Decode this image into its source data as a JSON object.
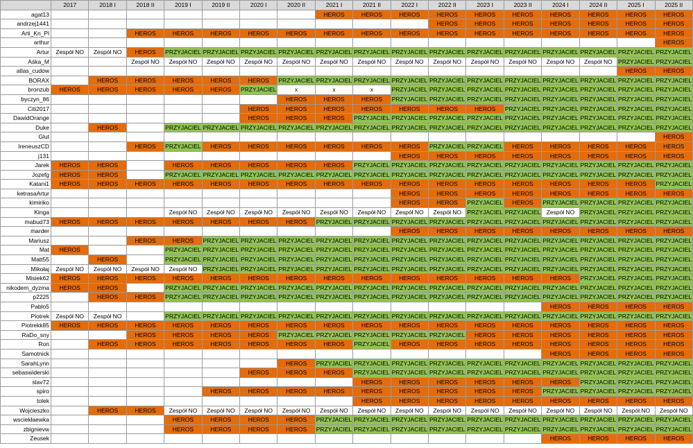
{
  "colors": {
    "HEROS": "#e46c0a",
    "PRZYJACIEL": "#92c353",
    "Zespół NO": "#ffffff",
    "x": "#ffffff",
    "header": "#d9d9d9"
  },
  "columns": [
    "2017",
    "2018 I",
    "2018 II",
    "2019 I",
    "2019 II",
    "2020 I",
    "2020 II",
    "2021 I",
    "2021 II",
    "2022 I",
    "2022 II",
    "2023 I",
    "2023 II",
    "2024 I",
    "2024 II",
    "2025 I",
    "2025 II"
  ],
  "rows": [
    {
      "name": "agat13",
      "cells": [
        "",
        "",
        "",
        "",
        "",
        "",
        "",
        "HEROS",
        "HEROS",
        "HEROS",
        "HEROS",
        "HEROS",
        "HEROS",
        "HEROS",
        "HEROS",
        "HEROS",
        "HEROS"
      ]
    },
    {
      "name": "andrzej1441",
      "cells": [
        "",
        "",
        "",
        "",
        "",
        "",
        "",
        "",
        "",
        "",
        "HEROS",
        "HEROS",
        "HEROS",
        "HEROS",
        "HEROS",
        "HEROS",
        "HEROS"
      ]
    },
    {
      "name": "Arti_Kn_Pl",
      "cells": [
        "",
        "",
        "HEROS",
        "HEROS",
        "HEROS",
        "HEROS",
        "HEROS",
        "HEROS",
        "HEROS",
        "HEROS",
        "HEROS",
        "HEROS",
        "HEROS",
        "HEROS",
        "HEROS",
        "HEROS",
        "HEROS"
      ]
    },
    {
      "name": "arthur",
      "cells": [
        "",
        "",
        "",
        "",
        "",
        "",
        "",
        "",
        "",
        "",
        "",
        "",
        "",
        "",
        "",
        "",
        "HEROS"
      ]
    },
    {
      "name": "Artur",
      "cells": [
        "Zespół NO",
        "Zespół NO",
        "HEROS",
        "PRZYJACIEL",
        "PRZYJACIEL",
        "PRZYJACIEL",
        "PRZYJACIEL",
        "PRZYJACIEL",
        "PRZYJACIEL",
        "PRZYJACIEL",
        "PRZYJACIEL",
        "PRZYJACIEL",
        "PRZYJACIEL",
        "PRZYJACIEL",
        "PRZYJACIEL",
        "PRZYJACIEL",
        "PRZYJACIEL"
      ]
    },
    {
      "name": "Aśka_M",
      "cells": [
        "",
        "",
        "Zespół NO",
        "Zespół NO",
        "Zespół NO",
        "Zespół NO",
        "Zespół NO",
        "Zespół NO",
        "Zespół NO",
        "Zespół NO",
        "Zespół NO",
        "Zespół NO",
        "Zespół NO",
        "Zespół NO",
        "Zespół NO",
        "PRZYJACIEL",
        "PRZYJACIEL"
      ]
    },
    {
      "name": "atlas_cudow",
      "cells": [
        "",
        "",
        "",
        "",
        "",
        "",
        "",
        "",
        "",
        "",
        "",
        "",
        "",
        "",
        "",
        "HEROS",
        "HEROS"
      ]
    },
    {
      "name": "BORAX",
      "cells": [
        "",
        "HEROS",
        "HEROS",
        "HEROS",
        "HEROS",
        "HEROS",
        "PRZYJACIEL",
        "PRZYJACIEL",
        "PRZYJACIEL",
        "PRZYJACIEL",
        "PRZYJACIEL",
        "PRZYJACIEL",
        "PRZYJACIEL",
        "PRZYJACIEL",
        "PRZYJACIEL",
        "PRZYJACIEL",
        "PRZYJACIEL"
      ]
    },
    {
      "name": "bronzub",
      "cells": [
        "HEROS",
        "HEROS",
        "HEROS",
        "HEROS",
        "HEROS",
        "PRZYJACIEL",
        "x",
        "x",
        "x",
        "PRZYJACIEL",
        "PRZYJACIEL",
        "PRZYJACIEL",
        "PRZYJACIEL",
        "PRZYJACIEL",
        "PRZYJACIEL",
        "PRZYJACIEL",
        "PRZYJACIEL"
      ]
    },
    {
      "name": "byczyn_86",
      "cells": [
        "",
        "",
        "",
        "",
        "",
        "",
        "HEROS",
        "HEROS",
        "HEROS",
        "PRZYJACIEL",
        "PRZYJACIEL",
        "PRZYJACIEL",
        "PRZYJACIEL",
        "PRZYJACIEL",
        "PRZYJACIEL",
        "PRZYJACIEL",
        "PRZYJACIEL"
      ]
    },
    {
      "name": "Citi2017",
      "cells": [
        "",
        "",
        "",
        "",
        "",
        "HEROS",
        "HEROS",
        "HEROS",
        "HEROS",
        "HEROS",
        "HEROS",
        "HEROS",
        "PRZYJACIEL",
        "PRZYJACIEL",
        "PRZYJACIEL",
        "PRZYJACIEL",
        "PRZYJACIEL"
      ]
    },
    {
      "name": "DawidOrange",
      "cells": [
        "",
        "",
        "",
        "",
        "",
        "HEROS",
        "HEROS",
        "HEROS",
        "PRZYJACIEL",
        "PRZYJACIEL",
        "PRZYJACIEL",
        "PRZYJACIEL",
        "PRZYJACIEL",
        "PRZYJACIEL",
        "PRZYJACIEL",
        "PRZYJACIEL",
        "PRZYJACIEL"
      ]
    },
    {
      "name": "Duke",
      "cells": [
        "",
        "HEROS",
        "",
        "PRZYJACIEL",
        "PRZYJACIEL",
        "PRZYJACIEL",
        "PRZYJACIEL",
        "PRZYJACIEL",
        "PRZYJACIEL",
        "PRZYJACIEL",
        "PRZYJACIEL",
        "PRZYJACIEL",
        "PRZYJACIEL",
        "PRZYJACIEL",
        "PRZYJACIEL",
        "PRZYJACIEL",
        "PRZYJACIEL"
      ]
    },
    {
      "name": "Glut",
      "cells": [
        "",
        "",
        "",
        "",
        "",
        "",
        "",
        "",
        "",
        "",
        "",
        "",
        "",
        "",
        "",
        "",
        "HEROS"
      ]
    },
    {
      "name": "IreneuszCD",
      "cells": [
        "",
        "",
        "HEROS",
        "PRZYJACIEL",
        "HEROS",
        "HEROS",
        "HEROS",
        "HEROS",
        "HEROS",
        "HEROS",
        "PRZYJACIEL",
        "PRZYJACIEL",
        "HEROS",
        "HEROS",
        "HEROS",
        "HEROS",
        "HEROS"
      ]
    },
    {
      "name": "j131",
      "cells": [
        "",
        "",
        "",
        "",
        "",
        "",
        "",
        "",
        "",
        "HEROS",
        "HEROS",
        "HEROS",
        "HEROS",
        "HEROS",
        "HEROS",
        "HEROS",
        "HEROS"
      ]
    },
    {
      "name": "Jarek",
      "cells": [
        "HEROS",
        "HEROS",
        "",
        "HEROS",
        "HEROS",
        "HEROS",
        "HEROS",
        "HEROS",
        "PRZYJACIEL",
        "PRZYJACIEL",
        "PRZYJACIEL",
        "PRZYJACIEL",
        "PRZYJACIEL",
        "PRZYJACIEL",
        "PRZYJACIEL",
        "PRZYJACIEL",
        "PRZYJACIEL"
      ]
    },
    {
      "name": "Jozefg",
      "cells": [
        "HEROS",
        "HEROS",
        "",
        "PRZYJACIEL",
        "PRZYJACIEL",
        "PRZYJACIEL",
        "PRZYJACIEL",
        "PRZYJACIEL",
        "PRZYJACIEL",
        "PRZYJACIEL",
        "PRZYJACIEL",
        "PRZYJACIEL",
        "PRZYJACIEL",
        "PRZYJACIEL",
        "PRZYJACIEL",
        "PRZYJACIEL",
        "PRZYJACIEL"
      ]
    },
    {
      "name": "Katani1",
      "cells": [
        "HEROS",
        "HEROS",
        "HEROS",
        "HEROS",
        "HEROS",
        "HEROS",
        "HEROS",
        "HEROS",
        "HEROS",
        "HEROS",
        "HEROS",
        "HEROS",
        "HEROS",
        "HEROS",
        "HEROS",
        "HEROS",
        "PRZYJACIEL"
      ]
    },
    {
      "name": "ketrasaArtur",
      "cells": [
        "",
        "",
        "",
        "",
        "",
        "",
        "",
        "",
        "",
        "HEROS",
        "HEROS",
        "HEROS",
        "HEROS",
        "HEROS",
        "HEROS",
        "HEROS",
        "HEROS"
      ]
    },
    {
      "name": "kimiriko",
      "cells": [
        "",
        "",
        "",
        "",
        "",
        "",
        "",
        "",
        "",
        "HEROS",
        "HEROS",
        "PRZYJACIEL",
        "HEROS",
        "PRZYJACIEL",
        "PRZYJACIEL",
        "PRZYJACIEL",
        "PRZYJACIEL"
      ]
    },
    {
      "name": "Kinga",
      "cells": [
        "",
        "",
        "",
        "Zespół NO",
        "Zespół NO",
        "Zespół NO",
        "Zespół NO",
        "Zespół NO",
        "Zespół NO",
        "Zespół NO",
        "Zespół NO",
        "PRZYJACIEL",
        "PRZYJACIEL",
        "Zespół NO",
        "PRZYJACIEL",
        "PRZYJACIEL",
        "PRZYJACIEL"
      ]
    },
    {
      "name": "mabud73",
      "cells": [
        "HEROS",
        "HEROS",
        "HEROS",
        "HEROS",
        "HEROS",
        "HEROS",
        "HEROS",
        "PRZYJACIEL",
        "PRZYJACIEL",
        "PRZYJACIEL",
        "PRZYJACIEL",
        "PRZYJACIEL",
        "PRZYJACIEL",
        "PRZYJACIEL",
        "PRZYJACIEL",
        "PRZYJACIEL",
        "PRZYJACIEL"
      ]
    },
    {
      "name": "marder",
      "cells": [
        "",
        "",
        "",
        "",
        "",
        "",
        "",
        "",
        "",
        "HEROS",
        "HEROS",
        "HEROS",
        "HEROS",
        "HEROS",
        "HEROS",
        "HEROS",
        "HEROS"
      ]
    },
    {
      "name": "Mariusz",
      "cells": [
        "",
        "",
        "HEROS",
        "HEROS",
        "PRZYJACIEL",
        "PRZYJACIEL",
        "PRZYJACIEL",
        "PRZYJACIEL",
        "PRZYJACIEL",
        "PRZYJACIEL",
        "PRZYJACIEL",
        "PRZYJACIEL",
        "PRZYJACIEL",
        "PRZYJACIEL",
        "PRZYJACIEL",
        "PRZYJACIEL",
        "PRZYJACIEL"
      ]
    },
    {
      "name": "Mat",
      "cells": [
        "HEROS",
        "",
        "",
        "PRZYJACIEL",
        "PRZYJACIEL",
        "PRZYJACIEL",
        "PRZYJACIEL",
        "PRZYJACIEL",
        "PRZYJACIEL",
        "PRZYJACIEL",
        "PRZYJACIEL",
        "PRZYJACIEL",
        "PRZYJACIEL",
        "PRZYJACIEL",
        "PRZYJACIEL",
        "PRZYJACIEL",
        "PRZYJACIEL"
      ]
    },
    {
      "name": "Matt55",
      "cells": [
        "",
        "HEROS",
        "",
        "PRZYJACIEL",
        "PRZYJACIEL",
        "PRZYJACIEL",
        "PRZYJACIEL",
        "PRZYJACIEL",
        "PRZYJACIEL",
        "PRZYJACIEL",
        "PRZYJACIEL",
        "PRZYJACIEL",
        "PRZYJACIEL",
        "PRZYJACIEL",
        "PRZYJACIEL",
        "PRZYJACIEL",
        "PRZYJACIEL"
      ]
    },
    {
      "name": "Mikołaj",
      "cells": [
        "Zespół NO",
        "Zespół NO",
        "Zespół NO",
        "Zespół NO",
        "PRZYJACIEL",
        "PRZYJACIEL",
        "PRZYJACIEL",
        "PRZYJACIEL",
        "PRZYJACIEL",
        "PRZYJACIEL",
        "PRZYJACIEL",
        "PRZYJACIEL",
        "PRZYJACIEL",
        "PRZYJACIEL",
        "PRZYJACIEL",
        "PRZYJACIEL",
        "PRZYJACIEL"
      ]
    },
    {
      "name": "Misiek62",
      "cells": [
        "HEROS",
        "HEROS",
        "HEROS",
        "HEROS",
        "HEROS",
        "HEROS",
        "HEROS",
        "HEROS",
        "HEROS",
        "HEROS",
        "HEROS",
        "HEROS",
        "HEROS",
        "HEROS",
        "PRZYJACIEL",
        "PRZYJACIEL",
        "PRZYJACIEL"
      ]
    },
    {
      "name": "nikodem_dyzma",
      "cells": [
        "HEROS",
        "HEROS",
        "",
        "PRZYJACIEL",
        "PRZYJACIEL",
        "PRZYJACIEL",
        "PRZYJACIEL",
        "PRZYJACIEL",
        "PRZYJACIEL",
        "PRZYJACIEL",
        "PRZYJACIEL",
        "PRZYJACIEL",
        "PRZYJACIEL",
        "PRZYJACIEL",
        "PRZYJACIEL",
        "PRZYJACIEL",
        "PRZYJACIEL"
      ]
    },
    {
      "name": "p2225",
      "cells": [
        "",
        "HEROS",
        "HEROS",
        "PRZYJACIEL",
        "PRZYJACIEL",
        "PRZYJACIEL",
        "PRZYJACIEL",
        "PRZYJACIEL",
        "PRZYJACIEL",
        "PRZYJACIEL",
        "PRZYJACIEL",
        "PRZYJACIEL",
        "PRZYJACIEL",
        "PRZYJACIEL",
        "PRZYJACIEL",
        "PRZYJACIEL",
        "PRZYJACIEL"
      ]
    },
    {
      "name": "Pablo5",
      "cells": [
        "",
        "",
        "",
        "",
        "",
        "",
        "",
        "",
        "",
        "",
        "",
        "",
        "",
        "HEROS",
        "HEROS",
        "HEROS",
        "HEROS"
      ]
    },
    {
      "name": "Piotrek",
      "cells": [
        "Zespół NO",
        "Zespół NO",
        "",
        "PRZYJACIEL",
        "PRZYJACIEL",
        "PRZYJACIEL",
        "PRZYJACIEL",
        "PRZYJACIEL",
        "PRZYJACIEL",
        "PRZYJACIEL",
        "PRZYJACIEL",
        "PRZYJACIEL",
        "PRZYJACIEL",
        "PRZYJACIEL",
        "PRZYJACIEL",
        "PRZYJACIEL",
        "PRZYJACIEL"
      ]
    },
    {
      "name": "Piotrekk85",
      "cells": [
        "HEROS",
        "HEROS",
        "HEROS",
        "HEROS",
        "HEROS",
        "HEROS",
        "HEROS",
        "HEROS",
        "HEROS",
        "HEROS",
        "HEROS",
        "HEROS",
        "HEROS",
        "HEROS",
        "HEROS",
        "HEROS",
        "HEROS"
      ]
    },
    {
      "name": "RaDo_sny",
      "cells": [
        "",
        "",
        "HEROS",
        "HEROS",
        "HEROS",
        "HEROS",
        "PRZYJACIEL",
        "PRZYJACIEL",
        "PRZYJACIEL",
        "PRZYJACIEL",
        "PRZYJACIEL",
        "HEROS",
        "HEROS",
        "HEROS",
        "HEROS",
        "HEROS",
        "HEROS"
      ]
    },
    {
      "name": "Ron",
      "cells": [
        "",
        "HEROS",
        "HEROS",
        "HEROS",
        "HEROS",
        "HEROS",
        "HEROS",
        "HEROS",
        "PRZYJACIEL",
        "HEROS",
        "HEROS",
        "HEROS",
        "HEROS",
        "HEROS",
        "HEROS",
        "HEROS",
        "HEROS"
      ]
    },
    {
      "name": "Samotnick",
      "cells": [
        "",
        "",
        "",
        "",
        "",
        "",
        "",
        "",
        "",
        "",
        "",
        "",
        "",
        "HEROS",
        "HEROS",
        "HEROS",
        "HEROS"
      ]
    },
    {
      "name": "SarahLynn",
      "cells": [
        "",
        "",
        "",
        "",
        "",
        "",
        "HEROS",
        "PRZYJACIEL",
        "PRZYJACIEL",
        "PRZYJACIEL",
        "PRZYJACIEL",
        "PRZYJACIEL",
        "PRZYJACIEL",
        "PRZYJACIEL",
        "PRZYJACIEL",
        "PRZYJACIEL",
        "PRZYJACIEL"
      ]
    },
    {
      "name": "sebaswiderski",
      "cells": [
        "",
        "",
        "",
        "",
        "",
        "HEROS",
        "HEROS",
        "HEROS",
        "PRZYJACIEL",
        "PRZYJACIEL",
        "PRZYJACIEL",
        "PRZYJACIEL",
        "PRZYJACIEL",
        "PRZYJACIEL",
        "PRZYJACIEL",
        "PRZYJACIEL",
        "PRZYJACIEL"
      ]
    },
    {
      "name": "slav72",
      "cells": [
        "",
        "",
        "",
        "",
        "",
        "",
        "",
        "",
        "HEROS",
        "HEROS",
        "HEROS",
        "HEROS",
        "HEROS",
        "HEROS",
        "PRZYJACIEL",
        "PRZYJACIEL",
        "PRZYJACIEL"
      ]
    },
    {
      "name": "spiro",
      "cells": [
        "",
        "",
        "",
        "",
        "HEROS",
        "HEROS",
        "HEROS",
        "HEROS",
        "HEROS",
        "HEROS",
        "HEROS",
        "HEROS",
        "HEROS",
        "PRZYJACIEL",
        "PRZYJACIEL",
        "PRZYJACIEL",
        "PRZYJACIEL"
      ]
    },
    {
      "name": "tolek",
      "cells": [
        "",
        "",
        "",
        "",
        "",
        "",
        "",
        "",
        "HEROS",
        "HEROS",
        "HEROS",
        "HEROS",
        "HEROS",
        "HEROS",
        "HEROS",
        "HEROS",
        "HEROS"
      ]
    },
    {
      "name": "Wojcieszko",
      "cells": [
        "",
        "HEROS",
        "HEROS",
        "Zespół NO",
        "Zespół NO",
        "Zespół NO",
        "Zespół NO",
        "Zespół NO",
        "Zespół NO",
        "Zespół NO",
        "Zespół NO",
        "Zespół NO",
        "Zespół NO",
        "Zespół NO",
        "Zespół NO",
        "Zespół NO",
        "Zespół NO"
      ]
    },
    {
      "name": "wsciekłaewka",
      "cells": [
        "",
        "",
        "",
        "HEROS",
        "HEROS",
        "HEROS",
        "HEROS",
        "PRZYJACIEL",
        "PRZYJACIEL",
        "PRZYJACIEL",
        "PRZYJACIEL",
        "PRZYJACIEL",
        "PRZYJACIEL",
        "PRZYJACIEL",
        "PRZYJACIEL",
        "PRZYJACIEL",
        "PRZYJACIEL"
      ]
    },
    {
      "name": "zbignievw",
      "cells": [
        "",
        "",
        "",
        "HEROS",
        "HEROS",
        "HEROS",
        "HEROS",
        "PRZYJACIEL",
        "PRZYJACIEL",
        "PRZYJACIEL",
        "PRZYJACIEL",
        "PRZYJACIEL",
        "PRZYJACIEL",
        "PRZYJACIEL",
        "PRZYJACIEL",
        "PRZYJACIEL",
        "PRZYJACIEL"
      ]
    },
    {
      "name": "Zeusek",
      "cells": [
        "",
        "",
        "",
        "",
        "",
        "",
        "",
        "",
        "",
        "",
        "",
        "",
        "",
        "HEROS",
        "HEROS",
        "HEROS",
        "HEROS"
      ]
    }
  ]
}
